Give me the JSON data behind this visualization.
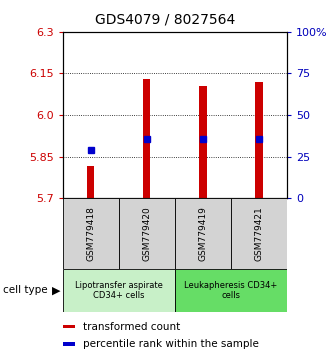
{
  "title": "GDS4079 / 8027564",
  "samples": [
    "GSM779418",
    "GSM779420",
    "GSM779419",
    "GSM779421"
  ],
  "red_values": [
    5.815,
    6.13,
    6.105,
    6.12
  ],
  "blue_values": [
    5.875,
    5.915,
    5.915,
    5.915
  ],
  "y_min": 5.7,
  "y_max": 6.3,
  "y_ticks_left": [
    5.7,
    5.85,
    6.0,
    6.15,
    6.3
  ],
  "y_ticks_right": [
    0,
    25,
    50,
    75,
    100
  ],
  "right_tick_labels": [
    "0",
    "25",
    "50",
    "75",
    "100%"
  ],
  "cell_groups": [
    {
      "label": "Lipotransfer aspirate\nCD34+ cells",
      "samples": [
        0,
        1
      ],
      "color": "#c8f0c8"
    },
    {
      "label": "Leukapheresis CD34+\ncells",
      "samples": [
        2,
        3
      ],
      "color": "#66dd66"
    }
  ],
  "legend_items": [
    {
      "color": "#cc0000",
      "label": "transformed count"
    },
    {
      "color": "#0000cc",
      "label": "percentile rank within the sample"
    }
  ],
  "cell_type_label": "cell type",
  "bar_width": 0.13,
  "bar_color": "#cc0000",
  "dot_color": "#0000cc",
  "bg_plot": "#ffffff",
  "bg_sample_box": "#d3d3d3",
  "left_tick_color": "#cc0000",
  "right_tick_color": "#0000bb",
  "title_fontsize": 10
}
